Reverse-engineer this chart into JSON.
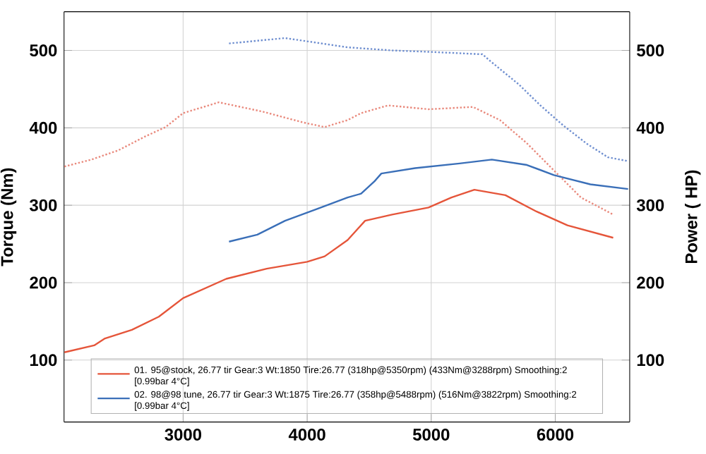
{
  "chart_data": {
    "type": "line",
    "ylabel": "Torque (Nm)",
    "y2label": "Power ( HP)",
    "xlim": [
      2040,
      6600
    ],
    "xticks": [
      3000,
      4000,
      5000,
      6000
    ],
    "ylim": [
      20,
      550
    ],
    "yticks": [
      100,
      200,
      300,
      400,
      500
    ],
    "y2lim": [
      20,
      550
    ],
    "y2ticks": [
      100,
      200,
      300,
      400,
      500
    ],
    "grid": true,
    "legend": "bottom",
    "series": [
      {
        "color": "#e9897c",
        "line_style": "dotted",
        "x": [
          2043,
          2261,
          2478,
          2696,
          2859,
          3000,
          3288,
          3640,
          3967,
          4141,
          4326,
          4435,
          4652,
          4978,
          5337,
          5554,
          5772,
          5989,
          6207,
          6467
        ],
        "values": [
          350,
          359,
          371,
          389,
          401,
          419,
          433,
          421,
          407,
          401,
          410,
          419,
          429,
          424,
          427,
          410,
          380,
          345,
          310,
          288
        ]
      },
      {
        "color": "#6f8fd0",
        "line_style": "dotted",
        "x": [
          3370,
          3822,
          4326,
          4685,
          5011,
          5413,
          5478,
          5707,
          5880,
          6065,
          6250,
          6424,
          6587
        ],
        "values": [
          509,
          516,
          504,
          500,
          498,
          495,
          486,
          456,
          429,
          403,
          380,
          362,
          357
        ]
      },
      {
        "axis": "y2",
        "name": "01. 95@stock, 26.77 tir Gear:3 Wt:1850 Tire:26.77 (318hp@5350rpm) (433Nm@3288rpm) Smoothing:2 [0.99bar 4°C]",
        "color": "#e5553a",
        "line_style": "solid",
        "x": [
          2043,
          2283,
          2370,
          2587,
          2804,
          3000,
          3348,
          3674,
          4000,
          4141,
          4326,
          4467,
          4685,
          4978,
          5163,
          5348,
          5598,
          5848,
          6098,
          6467
        ],
        "values": [
          110,
          119,
          128,
          139,
          156,
          180,
          205,
          218,
          227,
          234,
          255,
          280,
          288,
          297,
          310,
          320,
          313,
          292,
          274,
          258
        ]
      },
      {
        "axis": "y2",
        "name": "02. 98@98 tune, 26.77 tir Gear:3 Wt:1875 Tire:26.77 (358hp@5488rpm) (516Nm@3822rpm) Smoothing:2 [0.99bar 4°C]",
        "color": "#3a6fb8",
        "line_style": "solid",
        "x": [
          3370,
          3598,
          3822,
          4076,
          4326,
          4435,
          4543,
          4598,
          4870,
          5228,
          5489,
          5772,
          5989,
          6283,
          6587
        ],
        "values": [
          253,
          262,
          280,
          295,
          310,
          315,
          331,
          341,
          348,
          354,
          359,
          352,
          339,
          327,
          321
        ]
      }
    ]
  }
}
